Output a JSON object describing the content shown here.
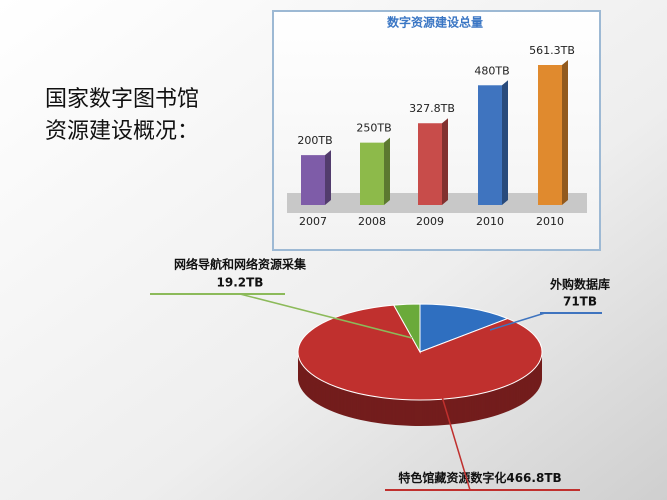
{
  "slide_title": [
    "国家数字图书馆",
    "资源建设概况："
  ],
  "chart_data": [
    {
      "type": "bar",
      "title": "数字资源建设总量",
      "categories": [
        "2007",
        "2008",
        "2009",
        "2010",
        "2010"
      ],
      "values": [
        200,
        250,
        327.8,
        480,
        561.3
      ],
      "value_labels": [
        "200TB",
        "250TB",
        "327.8TB",
        "480TB",
        "561.3TB"
      ],
      "colors": [
        "#7e5ca8",
        "#8dba4a",
        "#c84c4a",
        "#3f74bf",
        "#e08a2e"
      ]
    },
    {
      "type": "pie",
      "categories": [
        "外购数据库",
        "特色馆藏资源数字化",
        "网络导航和网络资源采集"
      ],
      "values": [
        71,
        466.8,
        19.2
      ],
      "value_labels": [
        "71TB",
        "466.8TB",
        "19.2TB"
      ],
      "colors": [
        "#2f6fc0",
        "#c0302e",
        "#6aaa3a"
      ]
    }
  ]
}
